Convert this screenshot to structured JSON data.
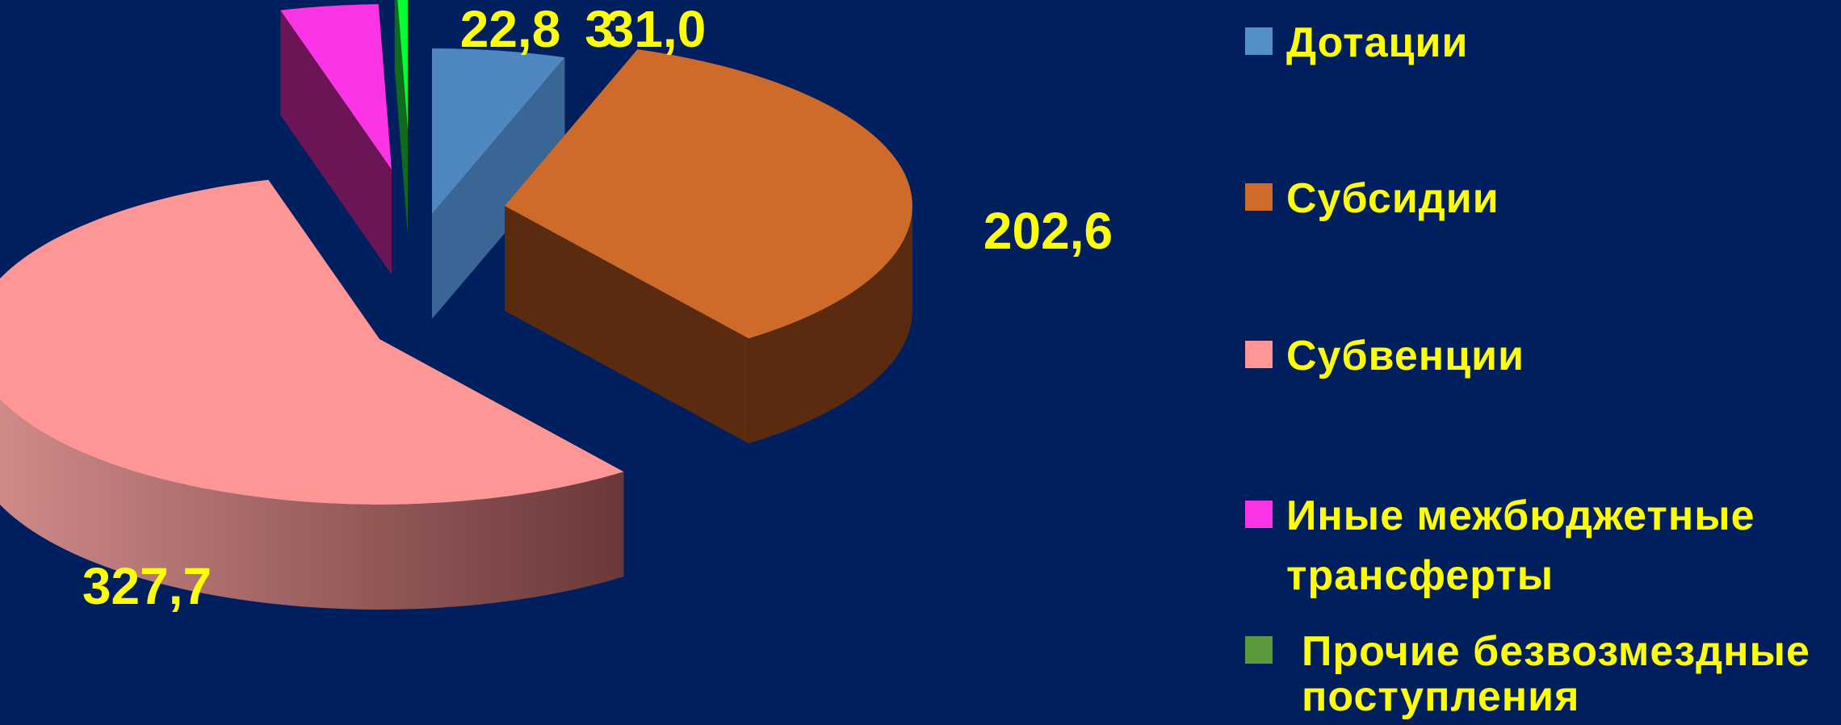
{
  "chart_data": {
    "type": "pie",
    "style": "3d-exploded",
    "series": [
      {
        "name": "Дотации",
        "value": 31.0,
        "label": "31,0",
        "color": "#4f87c1",
        "side_color": "#3a6696"
      },
      {
        "name": "Субсидии",
        "value": 202.6,
        "label": "202,6",
        "color": "#cf6b2a",
        "side_color": "#5a2b0e"
      },
      {
        "name": "Субвенции",
        "value": 327.7,
        "label": "327,7",
        "color": "#fe9695",
        "side_color": "#b06a6a"
      },
      {
        "name": "Иные межбюджетные трансферты",
        "value": 22.8,
        "label": "22,8",
        "color": "#fd33e6",
        "side_color": "#6b1556"
      },
      {
        "name": "Прочие безвозмездные поступления",
        "value": 3,
        "label": "3",
        "color": "#00ff33",
        "side_color": "#0d6b1a"
      }
    ],
    "legend": {
      "position": "right",
      "items": [
        {
          "lines": [
            "Дотации"
          ],
          "color": "#5390c9"
        },
        {
          "lines": [
            "Субсидии"
          ],
          "color": "#cf6b2a"
        },
        {
          "lines": [
            "Субвенции"
          ],
          "color": "#fe9695"
        },
        {
          "lines": [
            "Иные межбюджетные",
            "трансферты"
          ],
          "color": "#fd33e6"
        },
        {
          "lines": [
            "Прочие безвозмездные",
            "поступления"
          ],
          "color": "#5a9a3c"
        }
      ]
    },
    "colors": {
      "background": "#001f5e",
      "label_text": "#ffff00"
    }
  }
}
